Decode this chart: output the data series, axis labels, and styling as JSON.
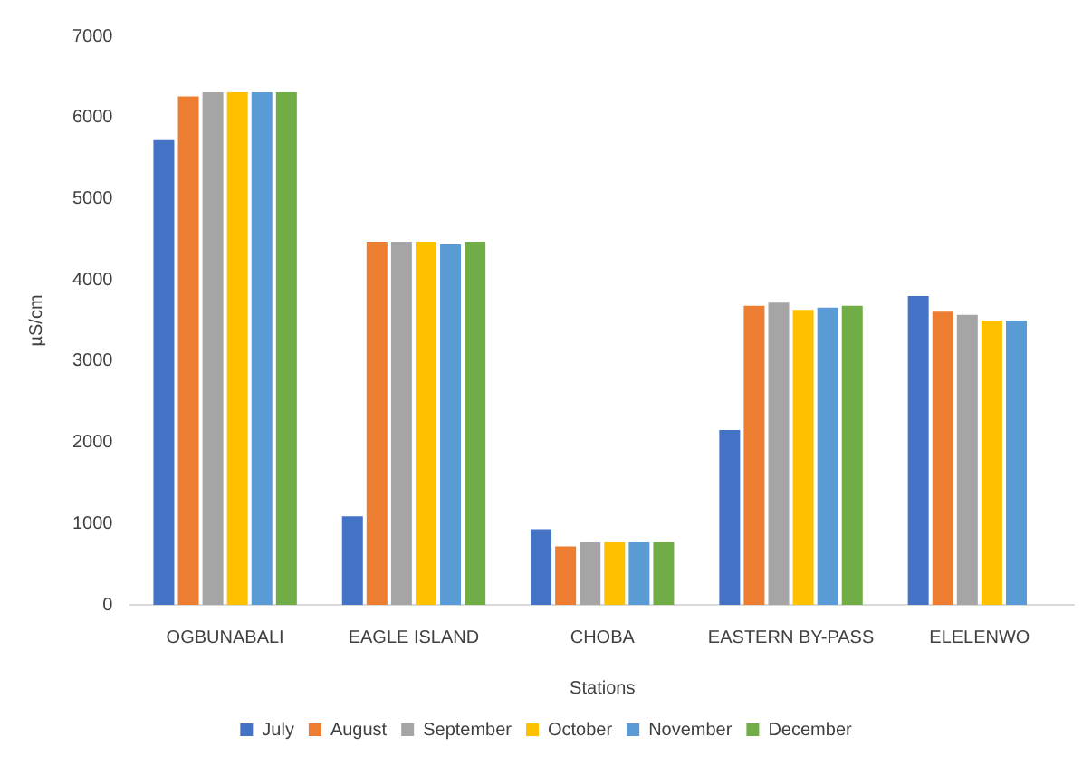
{
  "chart_data": {
    "type": "bar",
    "xlabel": "Stations",
    "ylabel": "µS/cm",
    "categories": [
      "OGBUNABALI",
      "EAGLE ISLAND",
      "CHOBA",
      "EASTERN BY-PASS",
      "ELELENWO"
    ],
    "series": [
      {
        "name": "July",
        "color": "#4472c4",
        "values": [
          5720,
          1090,
          930,
          2150,
          3800
        ]
      },
      {
        "name": "August",
        "color": "#ed7d31",
        "values": [
          6260,
          4470,
          720,
          3680,
          3610
        ]
      },
      {
        "name": "September",
        "color": "#a5a5a5",
        "values": [
          6310,
          4470,
          770,
          3720,
          3570
        ]
      },
      {
        "name": "October",
        "color": "#ffc000",
        "values": [
          6310,
          4470,
          770,
          3630,
          3500
        ]
      },
      {
        "name": "November",
        "color": "#5b9bd5",
        "values": [
          6310,
          4440,
          770,
          3660,
          3500
        ]
      },
      {
        "name": "December",
        "color": "#70ad47",
        "values": [
          6310,
          4470,
          770,
          3680,
          null
        ]
      }
    ],
    "ylim": [
      0,
      7000
    ],
    "yticks": [
      0,
      1000,
      2000,
      3000,
      4000,
      5000,
      6000,
      7000
    ],
    "grid": false,
    "legend": "bottom"
  }
}
